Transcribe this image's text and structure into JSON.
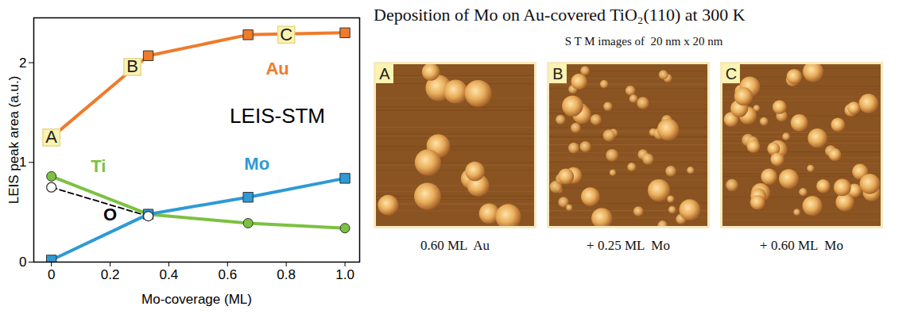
{
  "chart_data": {
    "type": "line",
    "xlabel": "Mo-coverage (ML)",
    "ylabel": "LEIS peak area (a.u.)",
    "x": [
      0,
      0.33,
      0.67,
      1.0
    ],
    "xlim": [
      -0.06,
      1.05
    ],
    "xticks": [
      0,
      0.2,
      0.4,
      0.6,
      0.8,
      {
        "value": 1,
        "label": "1.0"
      }
    ],
    "ylim": [
      0,
      2.45
    ],
    "yticks": [
      0,
      1,
      2
    ],
    "series": [
      {
        "name": "Au",
        "color": "#ef7b2b",
        "marker": "square",
        "line_style": "solid",
        "values": [
          1.25,
          2.07,
          2.28,
          2.3
        ],
        "point_labels": [
          "A",
          "B",
          "C",
          null
        ]
      },
      {
        "name": "Ti",
        "color": "#7cc142",
        "marker": "circle",
        "line_style": "solid",
        "values": [
          0.86,
          0.48,
          0.39,
          0.34
        ]
      },
      {
        "name": "Mo",
        "color": "#2e9ad6",
        "marker": "square",
        "line_style": "solid",
        "values": [
          0.02,
          0.48,
          0.65,
          0.84
        ]
      },
      {
        "name": "O",
        "color": "#000000",
        "marker": "circle_open",
        "line_style": "dashed",
        "values": [
          0.75,
          0.46,
          null,
          null
        ]
      }
    ],
    "annotations": [
      {
        "text": "LEIS-STM",
        "x": 0.77,
        "y": 1.46
      }
    ]
  },
  "images": {
    "title": "Deposition of Mo on Au-covered TiO₂(110) at 300 K",
    "subtitle": "S T M images of  20 nm x 20 nm",
    "panels": [
      {
        "label": "A",
        "caption": "0.60 ML  Au"
      },
      {
        "label": "B",
        "caption": "+ 0.25 ML  Mo"
      },
      {
        "label": "C",
        "caption": "+ 0.60 ML  Mo"
      }
    ]
  }
}
